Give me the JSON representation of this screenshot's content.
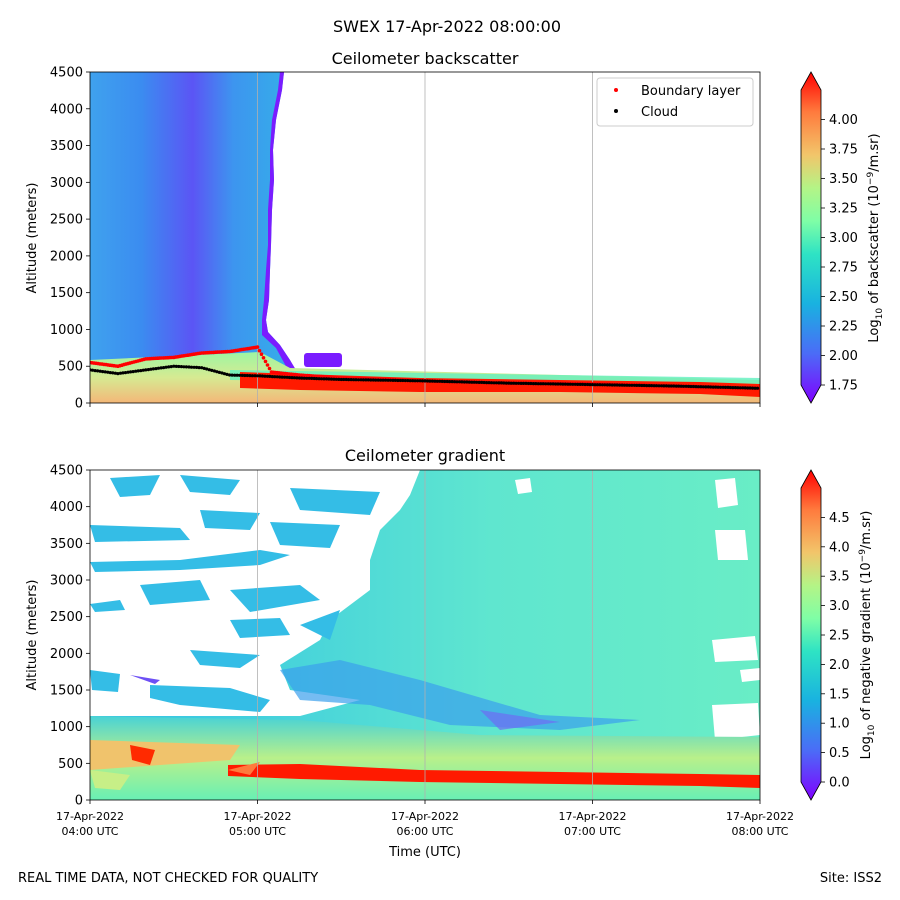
{
  "suptitle": "SWEX 17-Apr-2022 08:00:00",
  "footer_left": "REAL TIME DATA, NOT CHECKED FOR QUALITY",
  "footer_right": "Site: ISS2",
  "xlabel": "Time (UTC)",
  "x_ticks": [
    {
      "line1": "17-Apr-2022",
      "line2": "04:00 UTC"
    },
    {
      "line1": "17-Apr-2022",
      "line2": "05:00 UTC"
    },
    {
      "line1": "17-Apr-2022",
      "line2": "06:00 UTC"
    },
    {
      "line1": "17-Apr-2022",
      "line2": "07:00 UTC"
    },
    {
      "line1": "17-Apr-2022",
      "line2": "08:00 UTC"
    }
  ],
  "chart_data": [
    {
      "type": "heatmap",
      "title": "Ceilometer backscatter",
      "ylabel": "Altitude (meters)",
      "xlim": [
        "04:00",
        "08:00"
      ],
      "ylim": [
        0,
        4500
      ],
      "y_ticks": [
        "0",
        "500",
        "1000",
        "1500",
        "2000",
        "2500",
        "3000",
        "3500",
        "4000",
        "4500"
      ],
      "colorbar": {
        "label_prefix": "Log",
        "label_sub": "10",
        "label_mid": " of backscatter (10",
        "label_sup": "−9",
        "label_suffix": "/m.sr)",
        "range": [
          1.75,
          4.25
        ],
        "ticks": [
          "1.75",
          "2.00",
          "2.25",
          "2.50",
          "2.75",
          "3.00",
          "3.25",
          "3.50",
          "3.75",
          "4.00"
        ]
      },
      "legend": {
        "placement": "top-right",
        "entries": [
          {
            "name": "Boundary layer",
            "color": "#ff0000"
          },
          {
            "name": "Cloud",
            "color": "#000000"
          }
        ]
      },
      "boundary_layer": {
        "times": [
          "04:00",
          "04:10",
          "04:20",
          "04:30",
          "04:40",
          "04:50",
          "05:00",
          "05:05",
          "05:15",
          "05:30",
          "06:00",
          "06:30",
          "07:00",
          "07:30",
          "08:00"
        ],
        "altitudes": [
          550,
          500,
          600,
          620,
          680,
          700,
          760,
          420,
          380,
          340,
          300,
          270,
          260,
          230,
          200
        ]
      },
      "cloud": {
        "times": [
          "04:00",
          "04:10",
          "04:20",
          "04:30",
          "04:40",
          "04:50",
          "05:00",
          "05:15",
          "05:30",
          "06:00",
          "06:30",
          "07:00",
          "07:30",
          "08:00"
        ],
        "altitudes": [
          450,
          400,
          450,
          500,
          480,
          380,
          370,
          340,
          320,
          300,
          270,
          250,
          230,
          200
        ]
      }
    },
    {
      "type": "heatmap",
      "title": "Ceilometer gradient",
      "ylabel": "Altitude (meters)",
      "xlim": [
        "04:00",
        "08:00"
      ],
      "ylim": [
        0,
        4500
      ],
      "y_ticks": [
        "0",
        "500",
        "1000",
        "1500",
        "2000",
        "2500",
        "3000",
        "3500",
        "4000",
        "4500"
      ],
      "colorbar": {
        "label_prefix": "Log",
        "label_sub": "10",
        "label_mid": " of negative gradient (10",
        "label_sup": "−9",
        "label_suffix": "/m.sr)",
        "range": [
          0.0,
          5.0
        ],
        "ticks": [
          "0.0",
          "0.5",
          "1.0",
          "1.5",
          "2.0",
          "2.5",
          "3.0",
          "3.5",
          "4.0",
          "4.5"
        ]
      }
    }
  ]
}
